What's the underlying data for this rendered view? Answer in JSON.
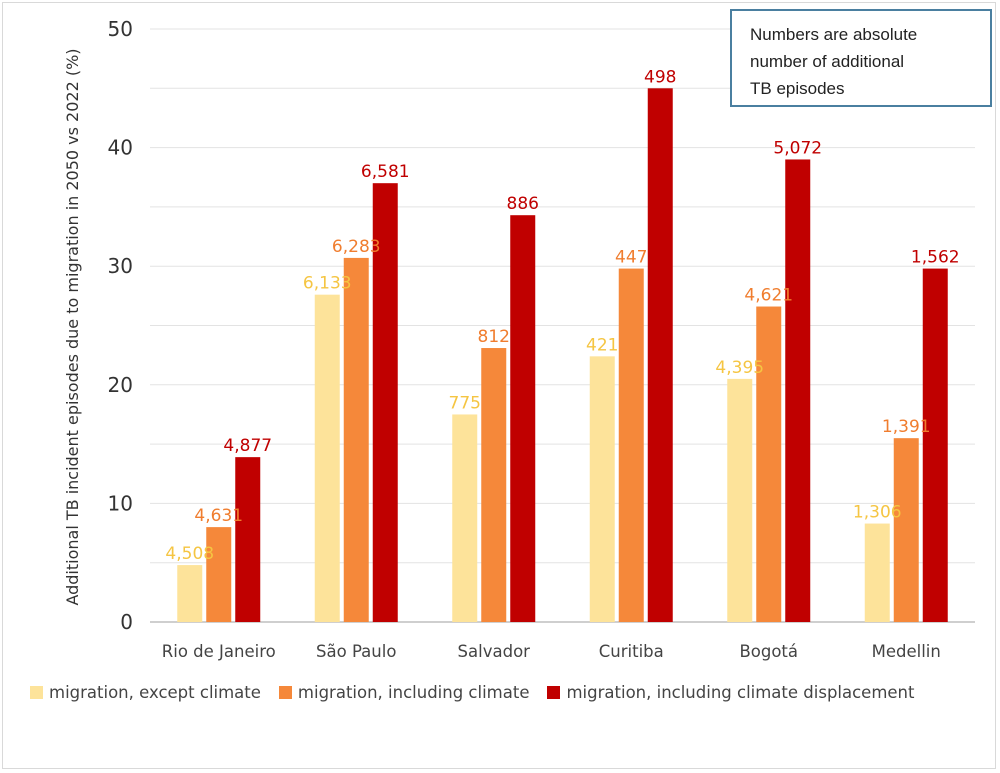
{
  "note": {
    "lines": [
      "Numbers are absolute",
      "number of additional",
      "TB episodes"
    ]
  },
  "chart_data": {
    "type": "bar",
    "title": "",
    "xlabel": "",
    "ylabel": "Additional TB incident episodes due to migration in 2050 vs 2022 (%)",
    "ylim": [
      0,
      50
    ],
    "yticks": [
      0,
      10,
      20,
      30,
      40,
      50
    ],
    "grid": true,
    "legend_position": "bottom",
    "categories": [
      "Rio de Janeiro",
      "São Paulo",
      "Salvador",
      "Curitiba",
      "Bogotá",
      "Medellin"
    ],
    "series": [
      {
        "name": "migration, except climate",
        "color": "#fde39a",
        "label_color": "#f5c542",
        "values": [
          4.8,
          27.6,
          17.5,
          22.4,
          20.5,
          8.3
        ],
        "labels": [
          "4,508",
          "6,133",
          "775",
          "421",
          "4,395",
          "1,306"
        ]
      },
      {
        "name": "migration, including climate",
        "color": "#f5883a",
        "label_color": "#f07d2e",
        "values": [
          8.0,
          30.7,
          23.1,
          29.8,
          26.6,
          15.5
        ],
        "labels": [
          "4,631",
          "6,283",
          "812",
          "447",
          "4,621",
          "1,391"
        ]
      },
      {
        "name": "migration, including climate displacement",
        "color": "#c00000",
        "label_color": "#c00000",
        "values": [
          13.9,
          37.0,
          34.3,
          45.0,
          39.0,
          29.8
        ],
        "labels": [
          "4,877",
          "6,581",
          "886",
          "498",
          "5,072",
          "1,562"
        ]
      }
    ]
  }
}
